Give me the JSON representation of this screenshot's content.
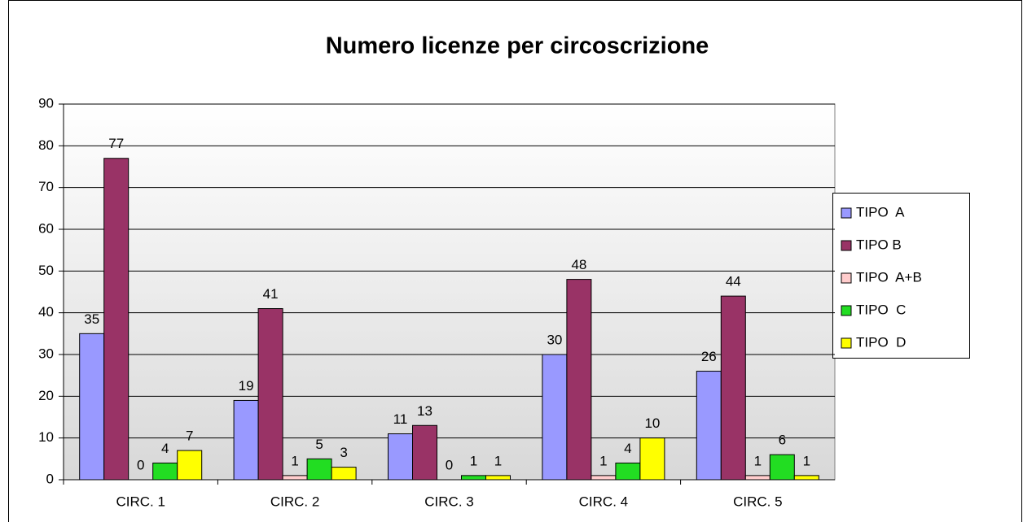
{
  "chart_data": {
    "type": "bar",
    "title": "Numero licenze per circoscrizione",
    "categories": [
      "CIRC. 1",
      "CIRC. 2",
      "CIRC. 3",
      "CIRC. 4",
      "CIRC. 5"
    ],
    "series": [
      {
        "name": "TIPO  A",
        "color": "#9999ff",
        "values": [
          35,
          19,
          11,
          30,
          26
        ]
      },
      {
        "name": "TIPO B",
        "color": "#993366",
        "values": [
          77,
          41,
          13,
          48,
          44
        ]
      },
      {
        "name": "TIPO  A+B",
        "color": "#ffcccc",
        "values": [
          0,
          1,
          0,
          1,
          1
        ]
      },
      {
        "name": "TIPO  C",
        "color": "#22dd22",
        "values": [
          4,
          5,
          1,
          4,
          6
        ]
      },
      {
        "name": "TIPO  D",
        "color": "#ffff00",
        "values": [
          7,
          3,
          1,
          10,
          1
        ]
      }
    ],
    "ylim": [
      0,
      90
    ],
    "yticks": [
      0,
      10,
      20,
      30,
      40,
      50,
      60,
      70,
      80,
      90
    ],
    "grid": true,
    "legend": "right"
  }
}
